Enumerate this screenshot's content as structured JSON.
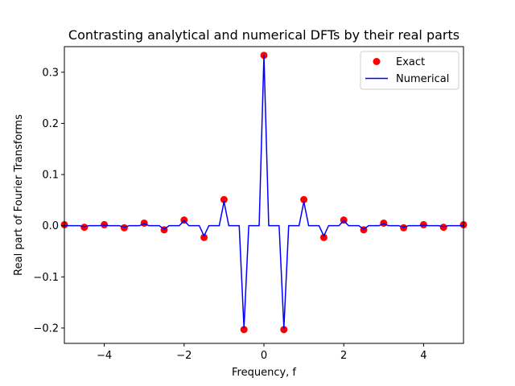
{
  "chart_data": {
    "type": "line",
    "title": "Contrasting analytical and numerical DFTs by their real parts",
    "xlabel": "Frequency, f",
    "ylabel": "Real part of Fourier Transforms",
    "xlim": [
      -5,
      5
    ],
    "ylim": [
      -0.23,
      0.35
    ],
    "xticks": [
      -4,
      -2,
      0,
      2,
      4
    ],
    "xtick_labels": [
      "−4",
      "−2",
      "0",
      "2",
      "4"
    ],
    "yticks": [
      -0.2,
      -0.1,
      0.0,
      0.1,
      0.2,
      0.3
    ],
    "ytick_labels": [
      "−0.2",
      "−0.1",
      "0.0",
      "0.1",
      "0.2",
      "0.3"
    ],
    "grid": false,
    "legend_position": "top-right",
    "series": [
      {
        "name": "Exact",
        "kind": "scatter",
        "color": "#ff0000",
        "x": [
          -5,
          -4.5,
          -4,
          -3.5,
          -3,
          -2.5,
          -2,
          -1.5,
          -1,
          -0.5,
          0,
          0.5,
          1,
          1.5,
          2,
          2.5,
          3,
          3.5,
          4,
          4.5,
          5
        ],
        "y": [
          0.002,
          -0.003,
          0.002,
          -0.004,
          0.005,
          -0.008,
          0.011,
          -0.023,
          0.051,
          -0.203,
          0.333,
          -0.203,
          0.051,
          -0.023,
          0.011,
          -0.008,
          0.005,
          -0.004,
          0.002,
          -0.003,
          0.002
        ]
      },
      {
        "name": "Numerical",
        "kind": "line",
        "color": "#0000ff",
        "x": [
          -5,
          -4.62,
          -4.5,
          -4.38,
          -4.12,
          -4,
          -3.88,
          -3.62,
          -3.5,
          -3.38,
          -3.12,
          -3,
          -2.88,
          -2.62,
          -2.5,
          -2.38,
          -2.12,
          -2,
          -1.88,
          -1.62,
          -1.5,
          -1.38,
          -1.12,
          -1,
          -0.88,
          -0.62,
          -0.5,
          -0.38,
          -0.12,
          0,
          0.12,
          0.38,
          0.5,
          0.62,
          0.88,
          1,
          1.12,
          1.38,
          1.5,
          1.62,
          1.88,
          2,
          2.12,
          2.38,
          2.5,
          2.62,
          2.88,
          3,
          3.12,
          3.38,
          3.5,
          3.62,
          3.88,
          4,
          4.12,
          4.38,
          4.5,
          4.62,
          5
        ],
        "y": [
          0.0,
          0.0,
          -0.002,
          0.0,
          0.0,
          0.001,
          0.0,
          0.0,
          -0.003,
          0.0,
          0.0,
          0.004,
          0.0,
          0.0,
          -0.007,
          0.0,
          0.0,
          0.01,
          0.0,
          0.0,
          -0.02,
          0.0,
          0.0,
          0.047,
          0.0,
          0.0,
          -0.2,
          0.0,
          0.0,
          0.333,
          0.0,
          0.0,
          -0.2,
          0.0,
          0.0,
          0.047,
          0.0,
          0.0,
          -0.02,
          0.0,
          0.0,
          0.01,
          0.0,
          0.0,
          -0.007,
          0.0,
          0.0,
          0.004,
          0.0,
          0.0,
          -0.003,
          0.0,
          0.0,
          0.001,
          0.0,
          0.0,
          -0.002,
          0.0,
          0.0
        ]
      }
    ]
  }
}
